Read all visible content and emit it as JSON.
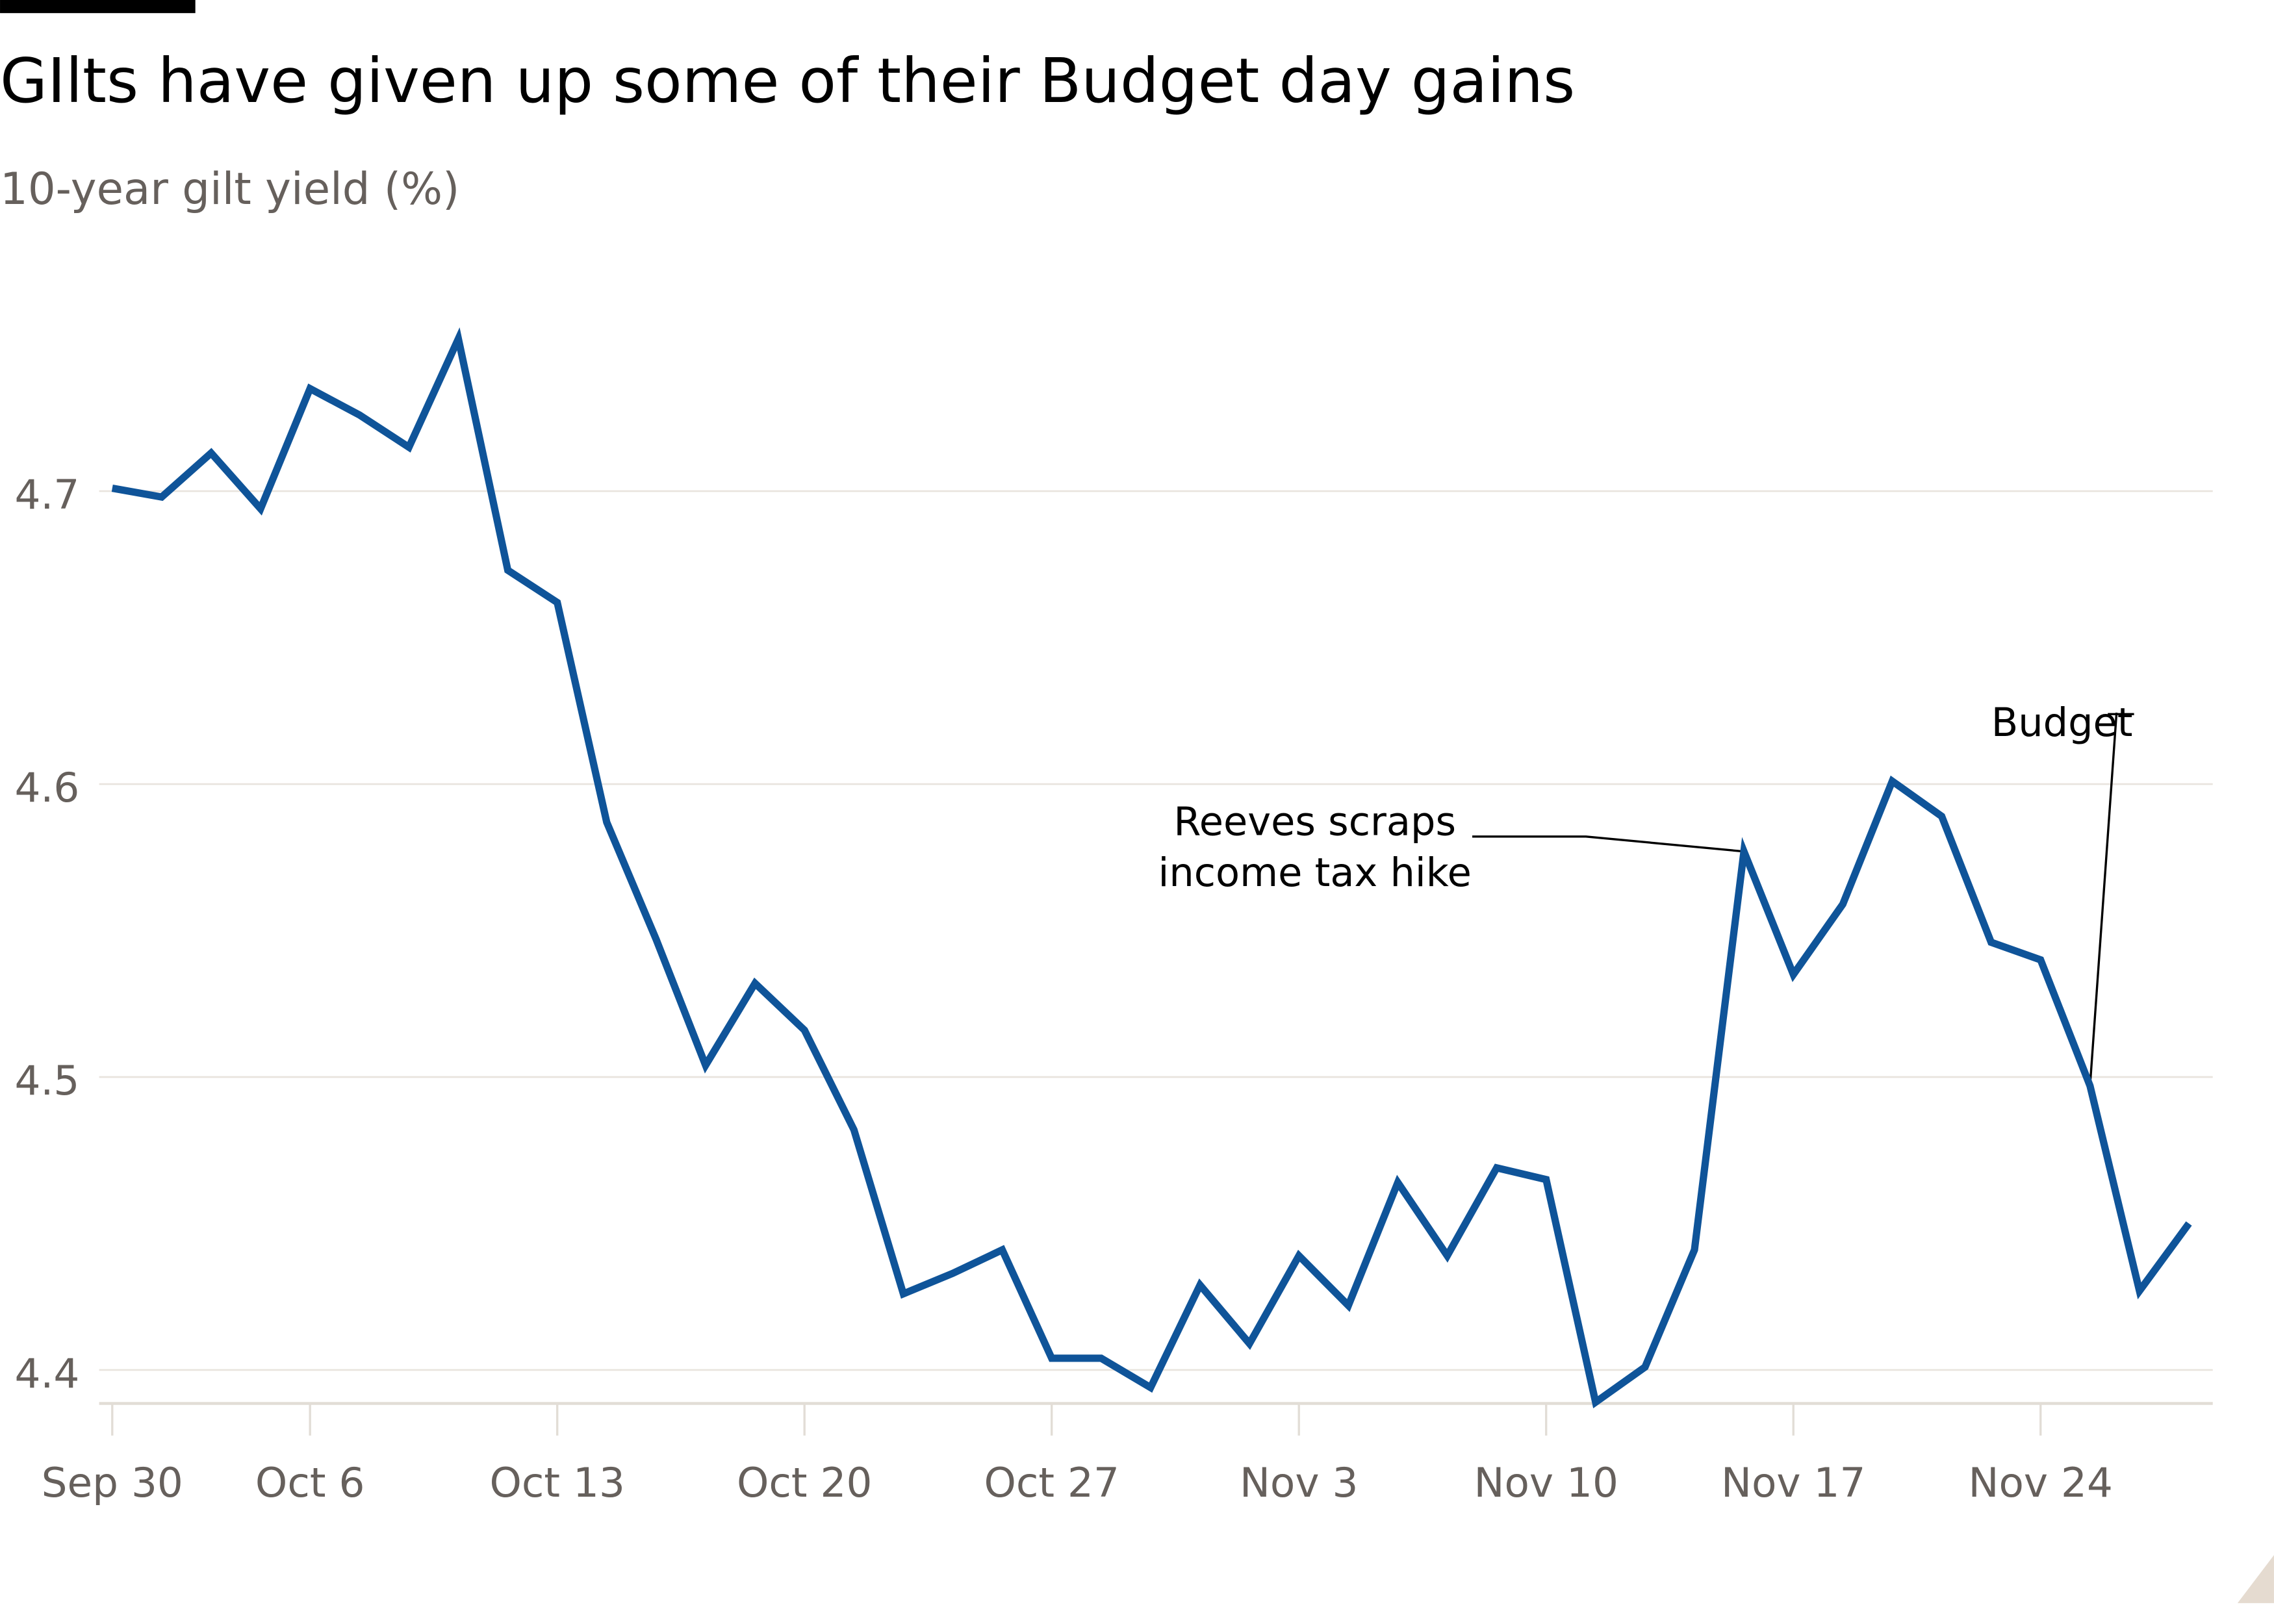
{
  "chart_data": {
    "type": "line",
    "title": "GIlts have given up some of their Budget day gains",
    "subtitle": "10-year gilt yield (%)",
    "xlabel": "",
    "ylabel": "",
    "ylim": [
      4.38,
      4.77
    ],
    "y_ticks": [
      "4.4",
      "4.5",
      "4.6",
      "4.7"
    ],
    "x_ticks": [
      "Sep 30",
      "Oct 6",
      "Oct 13",
      "Oct 20",
      "Oct 27",
      "Nov 3",
      "Nov 10",
      "Nov 17",
      "Nov 24"
    ],
    "grid": true,
    "line_color": "#0f5499",
    "x": [
      "Sep 30",
      "Oct 1",
      "Oct 2",
      "Oct 3",
      "Oct 6",
      "Oct 7",
      "Oct 8",
      "Oct 9",
      "Oct 10",
      "Oct 13",
      "Oct 14",
      "Oct 15",
      "Oct 16",
      "Oct 17",
      "Oct 20",
      "Oct 21",
      "Oct 22",
      "Oct 23",
      "Oct 24",
      "Oct 27",
      "Oct 28",
      "Oct 29",
      "Oct 30",
      "Oct 31",
      "Nov 3",
      "Nov 4",
      "Nov 5",
      "Nov 6",
      "Nov 7",
      "Nov 10",
      "Nov 11",
      "Nov 12",
      "Nov 13",
      "Nov 14",
      "Nov 17",
      "Nov 18",
      "Nov 19",
      "Nov 20",
      "Nov 21",
      "Nov 24",
      "Nov 25",
      "Nov 26",
      "Nov 27"
    ],
    "series": [
      {
        "values": [
          4.701,
          4.698,
          4.713,
          4.694,
          4.735,
          4.726,
          4.715,
          4.752,
          4.673,
          4.662,
          4.587,
          4.547,
          4.504,
          4.532,
          4.516,
          4.482,
          4.426,
          4.433,
          4.441,
          4.404,
          4.404,
          4.394,
          4.429,
          4.409,
          4.439,
          4.422,
          4.464,
          4.439,
          4.469,
          4.465,
          4.389,
          4.401,
          4.441,
          4.577,
          4.535,
          4.559,
          4.601,
          4.589,
          4.546,
          4.54,
          4.497,
          4.427,
          4.45
        ]
      }
    ],
    "annotations": [
      {
        "lines": [
          "Reeves scraps",
          "income tax hike"
        ],
        "x": "Nov 13"
      },
      {
        "lines": [
          "Budget"
        ],
        "x": "Nov 25"
      }
    ]
  }
}
